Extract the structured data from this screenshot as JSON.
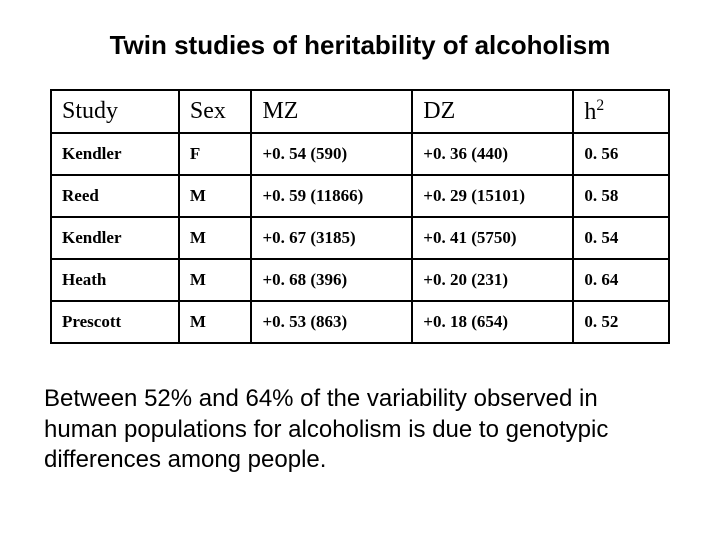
{
  "title": "Twin studies of heritability of alcoholism",
  "table": {
    "headers": {
      "study": "Study",
      "sex": "Sex",
      "mz": "MZ",
      "dz": "DZ",
      "h2_prefix": "h",
      "h2_sup": "2"
    },
    "rows": [
      {
        "study": "Kendler",
        "sex": "F",
        "mz": "+0. 54 (590)",
        "dz": "+0. 36 (440)",
        "h2": "0. 56"
      },
      {
        "study": "Reed",
        "sex": "M",
        "mz": "+0. 59 (11866)",
        "dz": "+0. 29 (15101)",
        "h2": "0. 58"
      },
      {
        "study": "Kendler",
        "sex": "M",
        "mz": "+0. 67 (3185)",
        "dz": "+0. 41 (5750)",
        "h2": "0. 54"
      },
      {
        "study": "Heath",
        "sex": "M",
        "mz": "+0. 68 (396)",
        "dz": "+0. 20 (231)",
        "h2": "0. 64"
      },
      {
        "study": "Prescott",
        "sex": "M",
        "mz": "+0. 53 (863)",
        "dz": "+0. 18 (654)",
        "h2": "0. 52"
      }
    ]
  },
  "caption": "Between 52% and 64% of the variability observed in human populations for alcoholism is due to genotypic differences among people."
}
